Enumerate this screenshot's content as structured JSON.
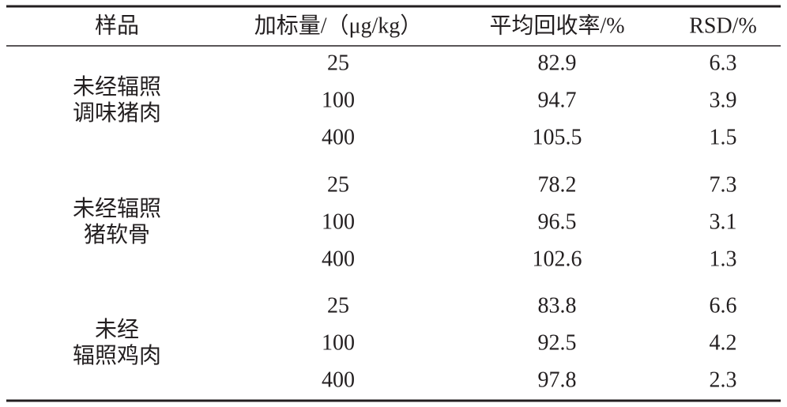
{
  "table": {
    "header": [
      "样品",
      "加标量/（μg/kg）",
      "平均回收率/%",
      "RSD/%"
    ],
    "groups": [
      {
        "sample": [
          "未经辐照",
          "调味猪肉"
        ],
        "rows": [
          [
            25,
            82.9,
            6.3
          ],
          [
            100,
            94.7,
            3.9
          ],
          [
            400,
            105.5,
            1.5
          ]
        ]
      },
      {
        "sample": [
          "未经辐照",
          "猪软骨"
        ],
        "rows": [
          [
            25,
            78.2,
            7.3
          ],
          [
            100,
            96.5,
            3.1
          ],
          [
            400,
            102.6,
            1.3
          ]
        ]
      },
      {
        "sample": [
          "未经",
          "辐照鸡肉"
        ],
        "rows": [
          [
            25,
            83.8,
            6.6
          ],
          [
            100,
            92.5,
            4.2
          ],
          [
            400,
            97.8,
            2.3
          ]
        ]
      }
    ]
  }
}
